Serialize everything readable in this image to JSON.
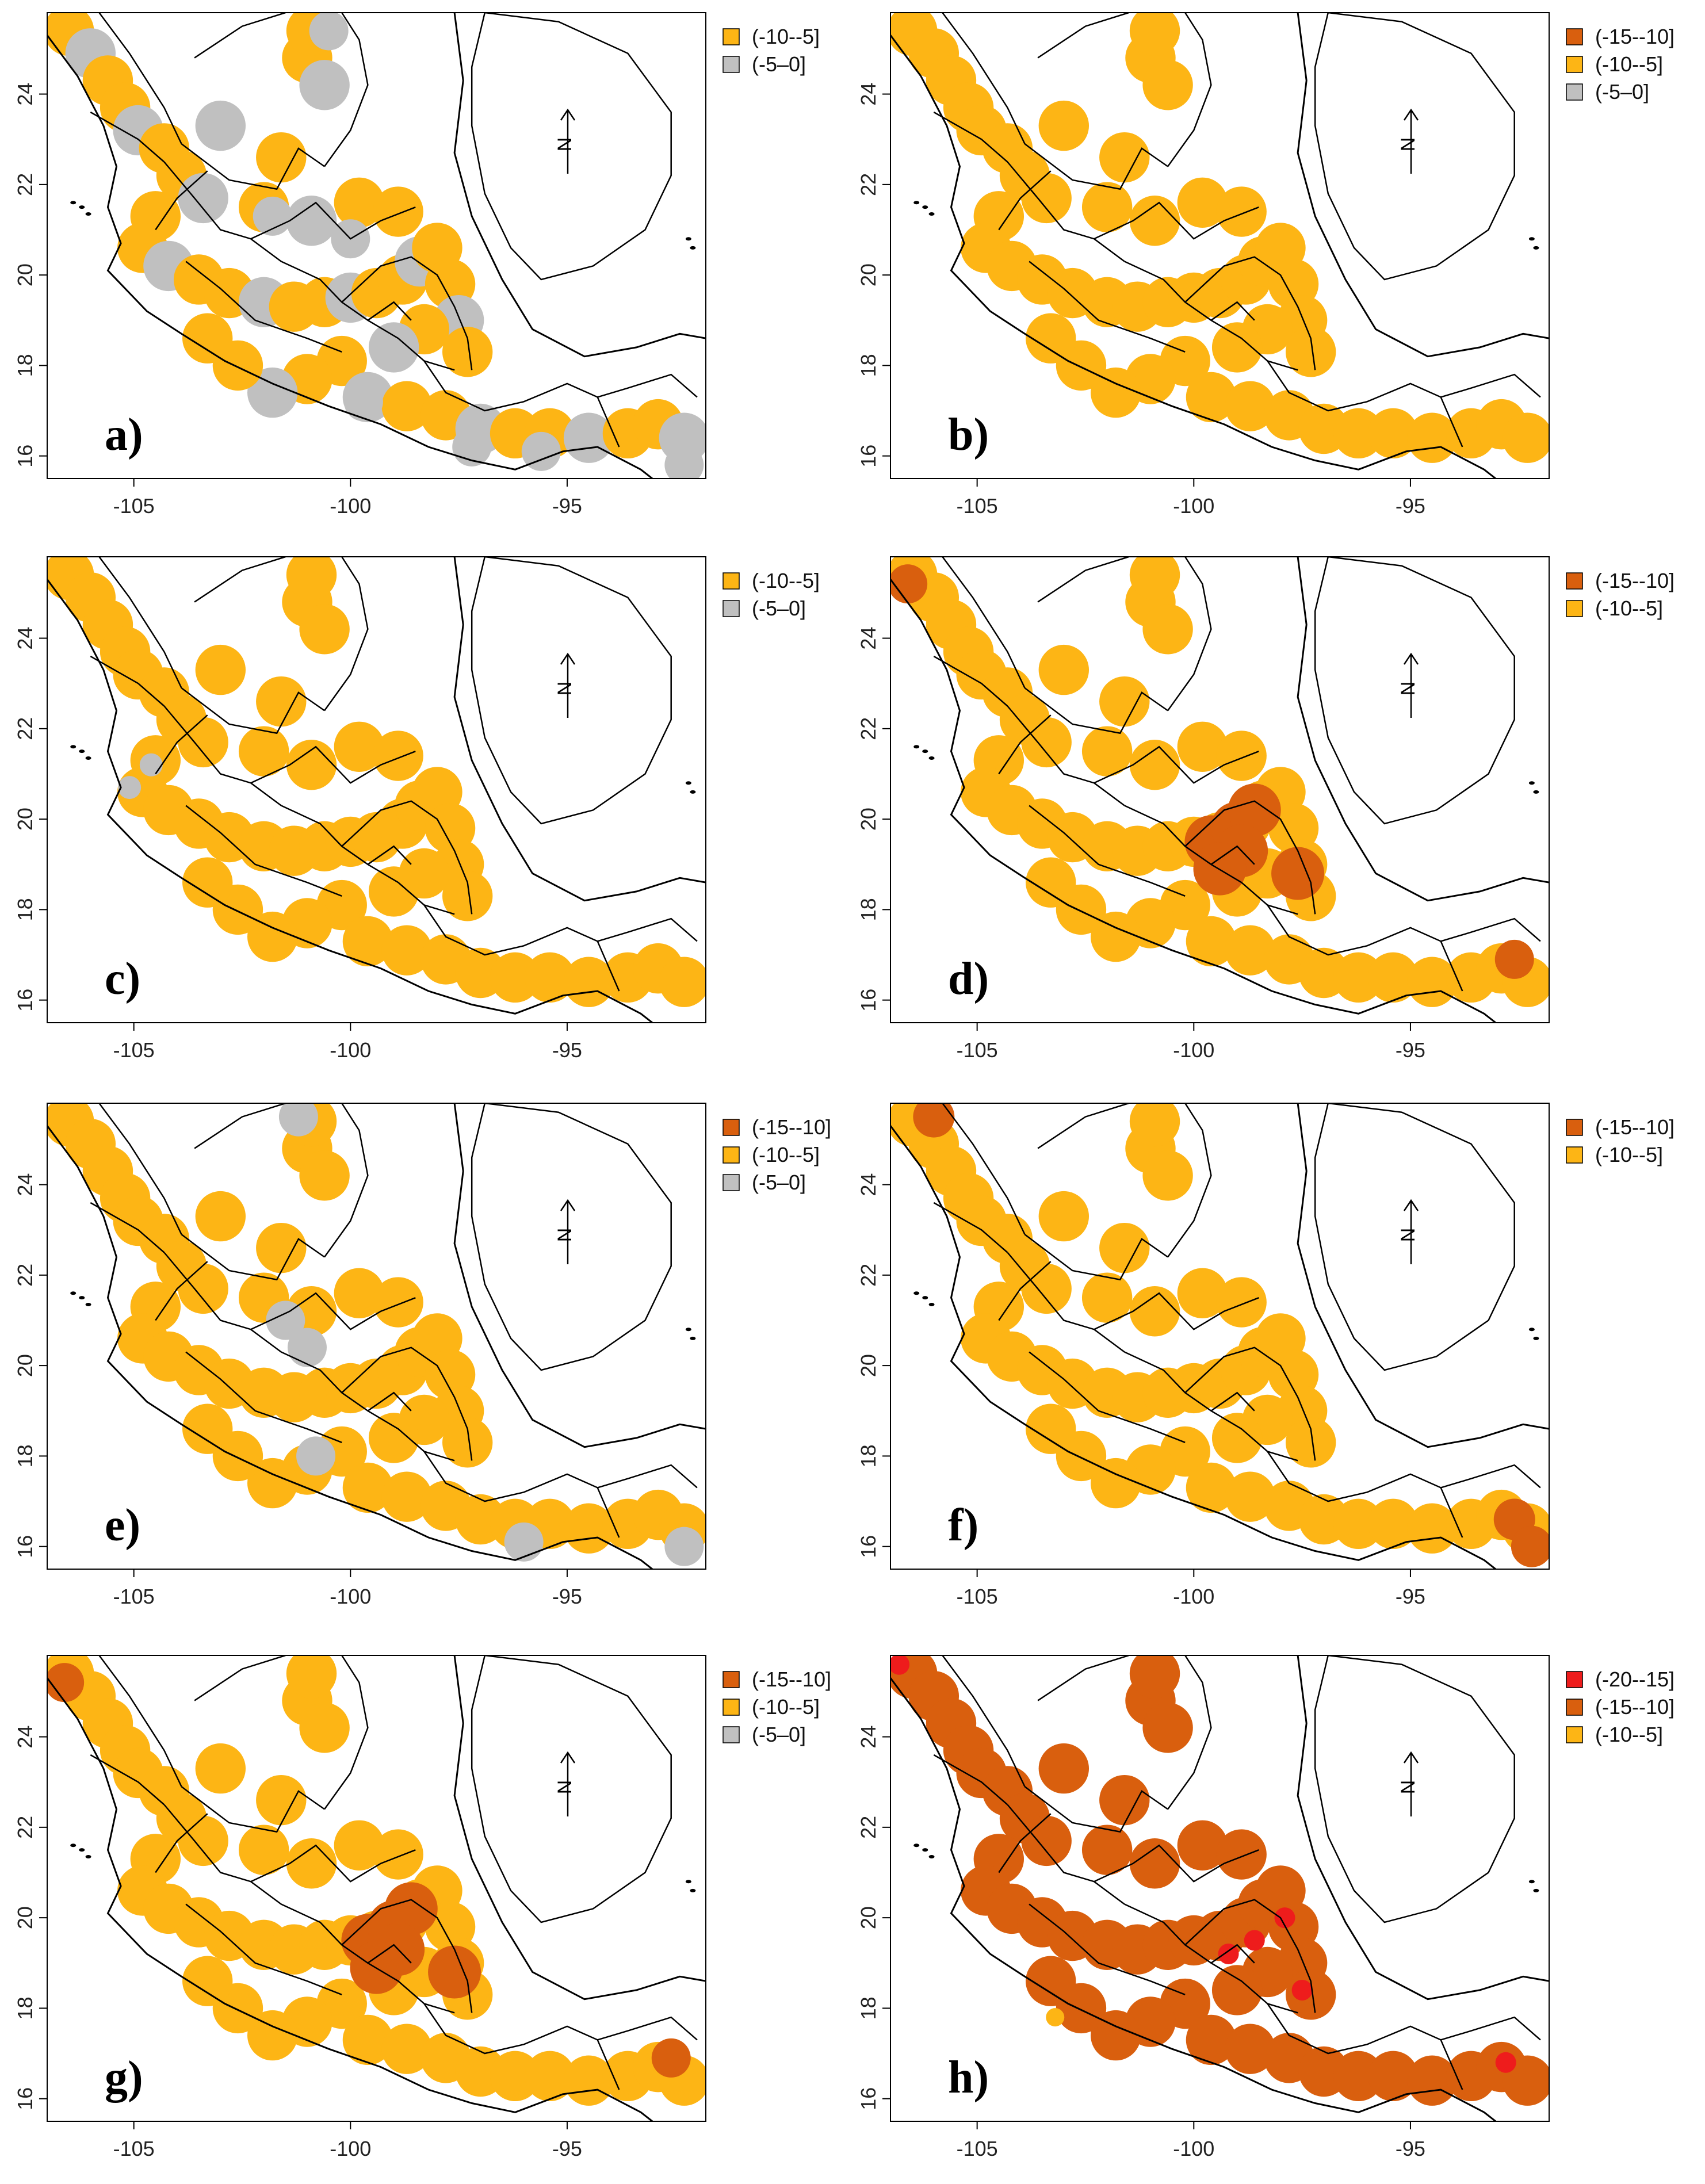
{
  "figure": {
    "x_ticks": [
      "-105",
      "-100",
      "-95"
    ],
    "y_ticks": [
      "16",
      "18",
      "20",
      "22",
      "24"
    ],
    "north_label": "N",
    "colors": {
      "class_-20_-15": "#ee1c1c",
      "class_-15_-10": "#d95f0e",
      "class_-10_-5": "#fdb515",
      "class_-5_0": "#c0c0c0",
      "boundary": "#000000",
      "frame": "#000000"
    },
    "panels": [
      {
        "label": "a)",
        "legend": [
          {
            "text": "(-10--5]",
            "class": "class_-10_-5"
          },
          {
            "text": "(-5–0]",
            "class": "class_-5_0"
          }
        ]
      },
      {
        "label": "b)",
        "legend": [
          {
            "text": "(-15--10]",
            "class": "class_-15_-10"
          },
          {
            "text": "(-10--5]",
            "class": "class_-10_-5"
          },
          {
            "text": "(-5–0]",
            "class": "class_-5_0"
          }
        ]
      },
      {
        "label": "c)",
        "legend": [
          {
            "text": "(-10--5]",
            "class": "class_-10_-5"
          },
          {
            "text": "(-5–0]",
            "class": "class_-5_0"
          }
        ]
      },
      {
        "label": "d)",
        "legend": [
          {
            "text": "(-15--10]",
            "class": "class_-15_-10"
          },
          {
            "text": "(-10--5]",
            "class": "class_-10_-5"
          }
        ]
      },
      {
        "label": "e)",
        "legend": [
          {
            "text": "(-15--10]",
            "class": "class_-15_-10"
          },
          {
            "text": "(-10--5]",
            "class": "class_-10_-5"
          },
          {
            "text": "(-5–0]",
            "class": "class_-5_0"
          }
        ]
      },
      {
        "label": "f)",
        "legend": [
          {
            "text": "(-15--10]",
            "class": "class_-15_-10"
          },
          {
            "text": "(-10--5]",
            "class": "class_-10_-5"
          }
        ]
      },
      {
        "label": "g)",
        "legend": [
          {
            "text": "(-15--10]",
            "class": "class_-15_-10"
          },
          {
            "text": "(-10--5]",
            "class": "class_-10_-5"
          },
          {
            "text": "(-5–0]",
            "class": "class_-5_0"
          }
        ]
      },
      {
        "label": "h)",
        "legend": [
          {
            "text": "(-20--15]",
            "class": "class_-20_-15"
          },
          {
            "text": "(-15--10]",
            "class": "class_-15_-10"
          },
          {
            "text": "(-10--5]",
            "class": "class_-10_-5"
          }
        ]
      }
    ]
  }
}
